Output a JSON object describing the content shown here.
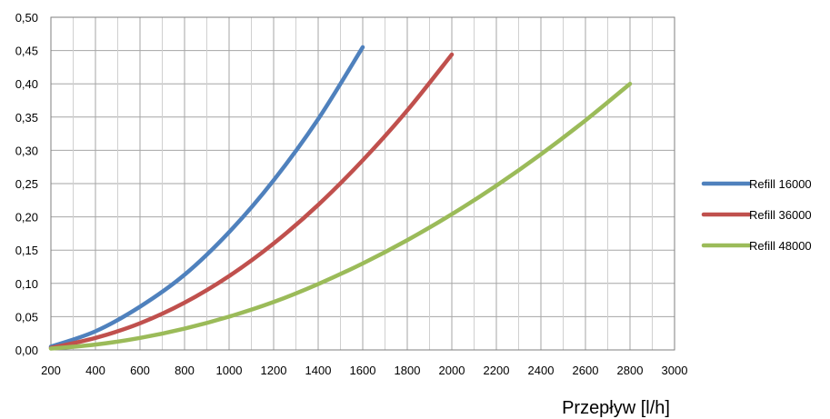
{
  "chart_data": {
    "type": "line",
    "title": "",
    "xlabel": "Przepływ [l/h]",
    "ylabel": "",
    "xlim": [
      200,
      3000
    ],
    "ylim": [
      0,
      0.5
    ],
    "x_ticks": [
      "200",
      "400",
      "600",
      "800",
      "1000",
      "1200",
      "1400",
      "1600",
      "1800",
      "2000",
      "2200",
      "2400",
      "2600",
      "2800",
      "3000"
    ],
    "y_ticks": [
      "0,00",
      "0,05",
      "0,10",
      "0,15",
      "0,20",
      "0,25",
      "0,30",
      "0,35",
      "0,40",
      "0,45",
      "0,50"
    ],
    "grid": true,
    "legend_position": "right",
    "series": [
      {
        "name": "Refill 16000",
        "color": "#4F81BD",
        "x": [
          200,
          400,
          600,
          800,
          1000,
          1200,
          1400,
          1600
        ],
        "y": [
          0.005,
          0.028,
          0.065,
          0.113,
          0.177,
          0.255,
          0.347,
          0.455
        ]
      },
      {
        "name": "Refill 36000",
        "color": "#C0504D",
        "x": [
          200,
          400,
          600,
          800,
          1000,
          1200,
          1400,
          1600,
          1800,
          2000
        ],
        "y": [
          0.003,
          0.018,
          0.04,
          0.071,
          0.111,
          0.16,
          0.218,
          0.285,
          0.36,
          0.444
        ]
      },
      {
        "name": "Refill 48000",
        "color": "#9BBB59",
        "x": [
          200,
          400,
          600,
          800,
          1000,
          1200,
          1400,
          1600,
          1800,
          2000,
          2200,
          2400,
          2600,
          2800
        ],
        "y": [
          0.002,
          0.008,
          0.018,
          0.032,
          0.05,
          0.072,
          0.099,
          0.13,
          0.165,
          0.204,
          0.247,
          0.294,
          0.345,
          0.4
        ]
      }
    ]
  }
}
